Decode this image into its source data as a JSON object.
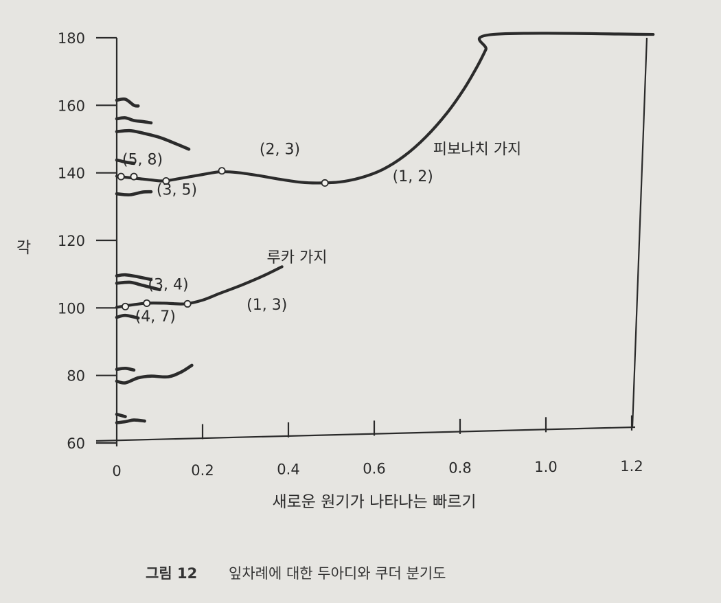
{
  "chart_data": {
    "type": "line",
    "xlabel": "새로운 원기가 나타나는 빠르기",
    "ylabel": "각",
    "xlim": [
      0,
      1.2
    ],
    "ylim": [
      60,
      180
    ],
    "xticks": [
      "0",
      "0.2",
      "0.4",
      "0.6",
      "0.8",
      "1.0",
      "1.2"
    ],
    "yticks": [
      "60",
      "80",
      "100",
      "120",
      "140",
      "160",
      "180"
    ],
    "grid": false,
    "caption": {
      "label": "그림 12",
      "text": "잎차례에 대한 두아디와 쿠더 분기도"
    },
    "branch_labels": [
      {
        "text": "피보나치 가지",
        "x": 0.84,
        "y": 145.5
      },
      {
        "text": "루카 가지",
        "x": 0.42,
        "y": 113.5
      }
    ],
    "annotations": [
      {
        "text": "(5, 8)",
        "x": 0.06,
        "y": 142.5
      },
      {
        "text": "(3, 5)",
        "x": 0.14,
        "y": 133.5
      },
      {
        "text": "(2, 3)",
        "x": 0.38,
        "y": 145.5
      },
      {
        "text": "(1, 2)",
        "x": 0.69,
        "y": 137.5
      },
      {
        "text": "(3, 4)",
        "x": 0.12,
        "y": 105.5
      },
      {
        "text": "(4, 7)",
        "x": 0.09,
        "y": 96
      },
      {
        "text": "(1, 3)",
        "x": 0.35,
        "y": 99.5
      }
    ],
    "series": [
      {
        "points": [
          [
            0.0,
            139
          ],
          [
            0.02,
            138.7
          ],
          [
            0.05,
            138.3
          ],
          [
            0.08,
            137.9
          ],
          [
            0.11,
            137.6
          ],
          [
            0.15,
            138.4
          ],
          [
            0.2,
            139.5
          ],
          [
            0.24,
            140.3
          ],
          [
            0.28,
            140.1
          ],
          [
            0.33,
            139.2
          ],
          [
            0.38,
            138.1
          ],
          [
            0.43,
            137.2
          ],
          [
            0.47,
            137.0
          ],
          [
            0.52,
            137.3
          ],
          [
            0.57,
            138.6
          ],
          [
            0.62,
            141.0
          ],
          [
            0.67,
            145.0
          ],
          [
            0.72,
            150.6
          ],
          [
            0.77,
            157.8
          ],
          [
            0.81,
            165.0
          ],
          [
            0.84,
            171.5
          ],
          [
            0.86,
            176.5
          ],
          [
            0.877,
            181.0
          ],
          [
            1.25,
            181.0
          ]
        ],
        "markers": [
          [
            0.01,
            138.9
          ],
          [
            0.04,
            138.9
          ],
          [
            0.115,
            137.6
          ],
          [
            0.245,
            140.6
          ],
          [
            0.485,
            137.0
          ]
        ]
      },
      {
        "points": [
          [
            0.0,
            100.2
          ],
          [
            0.03,
            100.8
          ],
          [
            0.07,
            101.4
          ],
          [
            0.11,
            101.4
          ],
          [
            0.16,
            101.2
          ],
          [
            0.2,
            102.3
          ],
          [
            0.24,
            104.3
          ],
          [
            0.28,
            106.2
          ],
          [
            0.32,
            108.3
          ],
          [
            0.35,
            110.0
          ],
          [
            0.385,
            112.2
          ]
        ],
        "markers": [
          [
            0.02,
            100.4
          ],
          [
            0.07,
            101.4
          ],
          [
            0.165,
            101.2
          ]
        ]
      },
      {
        "points": [
          [
            0.0,
            161.5
          ],
          [
            0.02,
            161.8
          ],
          [
            0.04,
            160
          ],
          [
            0.05,
            159.8
          ]
        ]
      },
      {
        "points": [
          [
            0.0,
            156
          ],
          [
            0.02,
            156.3
          ],
          [
            0.04,
            155.5
          ],
          [
            0.06,
            155.2
          ],
          [
            0.08,
            154.8
          ]
        ]
      },
      {
        "points": [
          [
            0.0,
            152.2
          ],
          [
            0.03,
            152.5
          ],
          [
            0.06,
            151.8
          ],
          [
            0.1,
            150.5
          ],
          [
            0.14,
            148.5
          ],
          [
            0.168,
            147.0
          ]
        ]
      },
      {
        "points": [
          [
            0.0,
            143.8
          ],
          [
            0.02,
            143.2
          ],
          [
            0.04,
            142.8
          ]
        ]
      },
      {
        "points": [
          [
            0.0,
            133.8
          ],
          [
            0.03,
            133.5
          ],
          [
            0.06,
            134.3
          ],
          [
            0.08,
            134.4
          ]
        ]
      },
      {
        "points": [
          [
            0.0,
            109.5
          ],
          [
            0.02,
            109.8
          ],
          [
            0.05,
            109.2
          ],
          [
            0.08,
            108.4
          ]
        ]
      },
      {
        "points": [
          [
            0.0,
            107.3
          ],
          [
            0.03,
            107.6
          ],
          [
            0.06,
            106.7
          ],
          [
            0.1,
            105.4
          ]
        ]
      },
      {
        "points": [
          [
            0.0,
            97.2
          ],
          [
            0.02,
            97.8
          ],
          [
            0.05,
            97.0
          ]
        ]
      },
      {
        "points": [
          [
            0.0,
            81.8
          ],
          [
            0.02,
            82.1
          ],
          [
            0.04,
            81.6
          ]
        ]
      },
      {
        "points": [
          [
            0.0,
            78.3
          ],
          [
            0.02,
            77.8
          ],
          [
            0.05,
            79.3
          ],
          [
            0.08,
            79.8
          ],
          [
            0.12,
            79.6
          ],
          [
            0.15,
            81.0
          ],
          [
            0.175,
            83.0
          ]
        ]
      },
      {
        "points": [
          [
            0.0,
            68.5
          ],
          [
            0.02,
            67.8
          ]
        ]
      },
      {
        "points": [
          [
            0.0,
            66.0
          ],
          [
            0.02,
            66.3
          ],
          [
            0.04,
            66.8
          ],
          [
            0.065,
            66.5
          ]
        ]
      }
    ]
  }
}
